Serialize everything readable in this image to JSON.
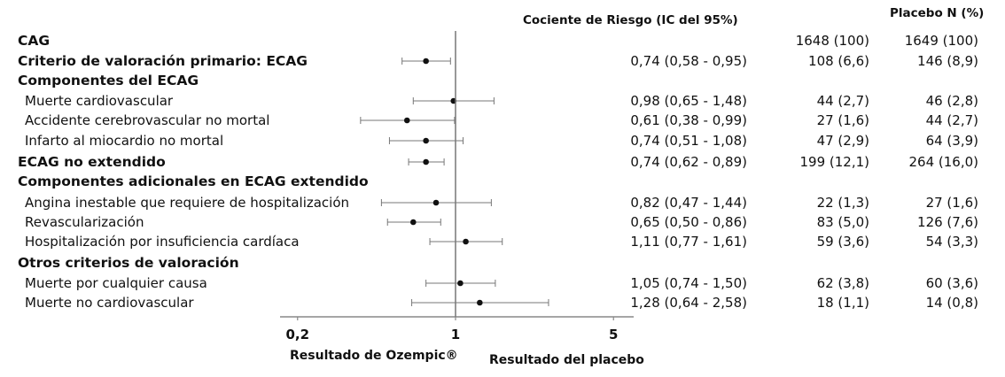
{
  "chart_data": {
    "type": "forest",
    "x_scale": "log",
    "xlim": [
      0.15,
      6.5
    ],
    "reference_line": 1,
    "x_ticks": [
      {
        "value": 0.2,
        "label": "0,2"
      },
      {
        "value": 1,
        "label": "1"
      },
      {
        "value": 5,
        "label": "5"
      }
    ],
    "headers": {
      "hr": "Cociente de Riesgo (IC del 95%)",
      "placebo": "Placebo N (%)"
    },
    "xlabel_left": "Resultado de Ozempic®",
    "xlabel_right": "Resultado del placebo",
    "rows": [
      {
        "label": "CAG",
        "bold": true,
        "hr_text": "",
        "ozempic": "1648 (100)",
        "placebo": "1649 (100)"
      },
      {
        "label": "Criterio de valoración primario: ECAG",
        "bold": true,
        "hr": 0.74,
        "lo": 0.58,
        "hi": 0.95,
        "hr_text": "0,74 (0,58 - 0,95)",
        "ozempic": "108 (6,6)",
        "placebo": "146 (8,9)"
      },
      {
        "label": "Componentes del ECAG",
        "bold": true,
        "hr_text": "",
        "ozempic": "",
        "placebo": ""
      },
      {
        "label": "Muerte cardiovascular",
        "bold": false,
        "hr": 0.98,
        "lo": 0.65,
        "hi": 1.48,
        "hr_text": "0,98 (0,65 - 1,48)",
        "ozempic": "44 (2,7)",
        "placebo": "46 (2,8)"
      },
      {
        "label": "Accidente cerebrovascular no mortal",
        "bold": false,
        "hr": 0.61,
        "lo": 0.38,
        "hi": 0.99,
        "hr_text": "0,61 (0,38 - 0,99)",
        "ozempic": "27 (1,6)",
        "placebo": "44 (2,7)"
      },
      {
        "label": "Infarto al miocardio no mortal",
        "bold": false,
        "hr": 0.74,
        "lo": 0.51,
        "hi": 1.08,
        "hr_text": "0,74 (0,51 - 1,08)",
        "ozempic": "47 (2,9)",
        "placebo": "64 (3,9)"
      },
      {
        "label": "ECAG no extendido",
        "bold": true,
        "hr": 0.74,
        "lo": 0.62,
        "hi": 0.89,
        "hr_text": "0,74 (0,62 - 0,89)",
        "ozempic": "199 (12,1)",
        "placebo": "264 (16,0)"
      },
      {
        "label": "Componentes adicionales en ECAG extendido",
        "bold": true,
        "hr_text": "",
        "ozempic": "",
        "placebo": ""
      },
      {
        "label": "Angina inestable que requiere de hospitalización",
        "bold": false,
        "hr": 0.82,
        "lo": 0.47,
        "hi": 1.44,
        "hr_text": "0,82 (0,47 - 1,44)",
        "ozempic": "22 (1,3)",
        "placebo": "27 (1,6)"
      },
      {
        "label": "Revascularización",
        "bold": false,
        "hr": 0.65,
        "lo": 0.5,
        "hi": 0.86,
        "hr_text": "0,65 (0,50 - 0,86)",
        "ozempic": "83 (5,0)",
        "placebo": "126 (7,6)"
      },
      {
        "label": "Hospitalización por insuficiencia cardíaca",
        "bold": false,
        "hr": 1.11,
        "lo": 0.77,
        "hi": 1.61,
        "hr_text": "1,11 (0,77 - 1,61)",
        "ozempic": "59 (3,6)",
        "placebo": "54 (3,3)"
      },
      {
        "label": "Otros criterios de valoración",
        "bold": true,
        "hr_text": "",
        "ozempic": "",
        "placebo": ""
      },
      {
        "label": "Muerte por cualquier causa",
        "bold": false,
        "hr": 1.05,
        "lo": 0.74,
        "hi": 1.5,
        "hr_text": "1,05 (0,74 - 1,50)",
        "ozempic": "62 (3,8)",
        "placebo": "60 (3,6)"
      },
      {
        "label": "Muerte no cardiovascular",
        "bold": false,
        "hr": 1.28,
        "lo": 0.64,
        "hi": 2.58,
        "hr_text": "1,28 (0,64 - 2,58)",
        "ozempic": "18 (1,1)",
        "placebo": "14 (0,8)"
      }
    ]
  }
}
